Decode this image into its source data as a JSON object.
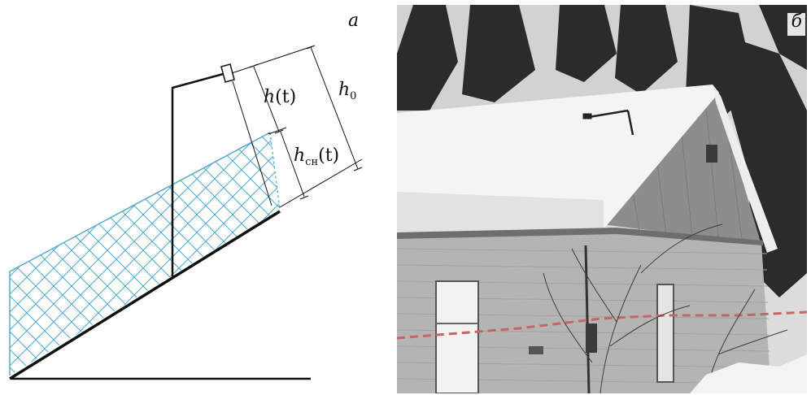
{
  "panel_a": {
    "label": "a",
    "h_t": {
      "base": "h",
      "paren": "(t)"
    },
    "h_0": {
      "base": "h",
      "sub": "0"
    },
    "h_sn_t": {
      "base": "h",
      "sub": "сн",
      "paren": "(t)"
    }
  },
  "panel_b": {
    "label": "б"
  },
  "colors": {
    "snow_hatch": "#4aa6cc",
    "line": "#111111"
  }
}
